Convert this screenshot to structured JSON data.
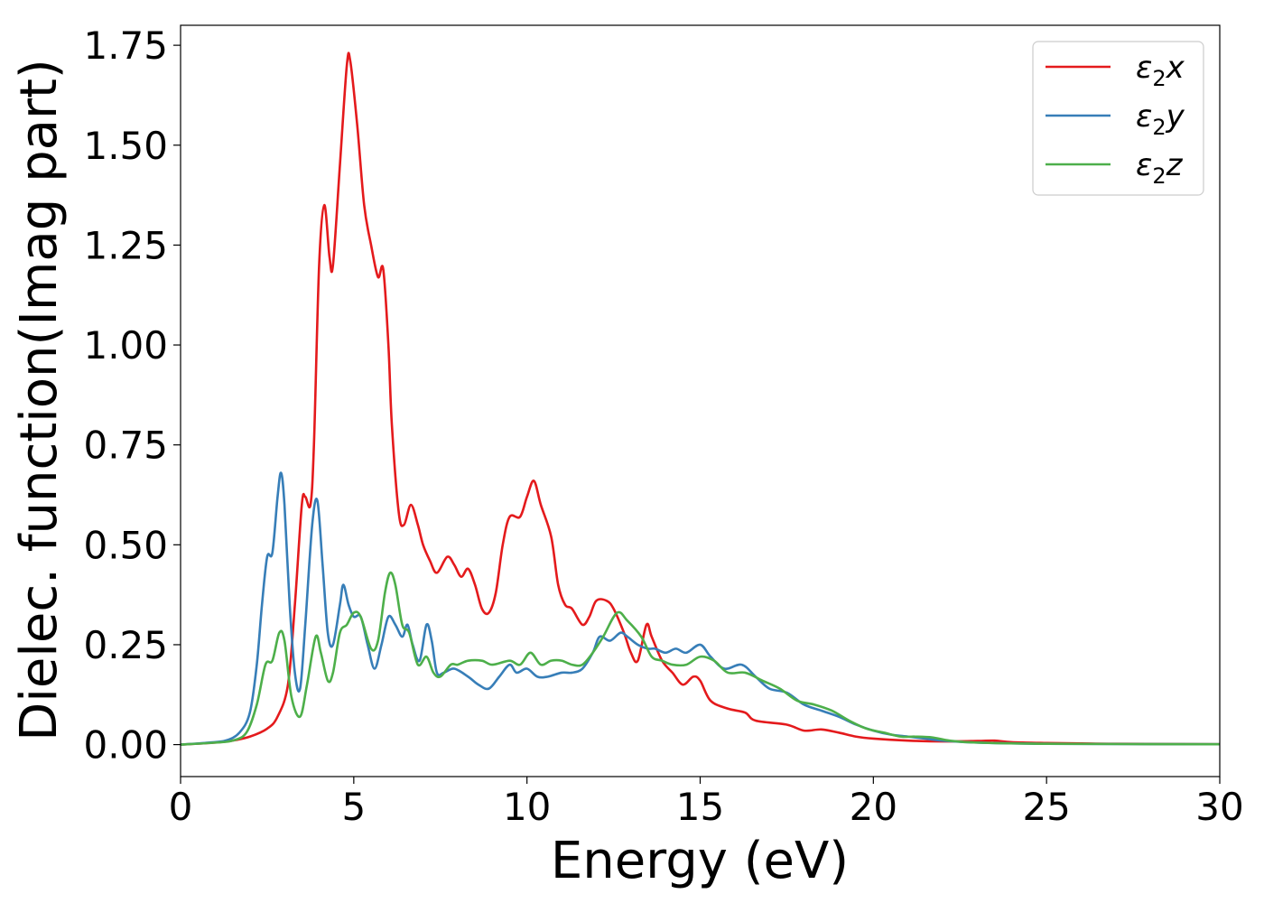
{
  "chart_data": {
    "type": "line",
    "title": "",
    "xlabel": "Energy (eV)",
    "ylabel": "Dielec. function(Imag part)",
    "xlim": [
      0,
      30
    ],
    "ylim": [
      -0.08,
      1.8
    ],
    "xticks": [
      "0",
      "5",
      "10",
      "15",
      "20",
      "25",
      "30"
    ],
    "yticks": [
      "0.00",
      "0.25",
      "0.50",
      "0.75",
      "1.00",
      "1.25",
      "1.50",
      "1.75"
    ],
    "grid": false,
    "legend_position": "top-right",
    "series": [
      {
        "name": "ε2x",
        "legend_base": "ε",
        "legend_sub": "2",
        "legend_var": "x",
        "color": "#e41a1c",
        "points": [
          [
            0,
            0
          ],
          [
            1,
            0.005
          ],
          [
            1.5,
            0.01
          ],
          [
            2,
            0.02
          ],
          [
            2.5,
            0.04
          ],
          [
            2.8,
            0.07
          ],
          [
            3.1,
            0.15
          ],
          [
            3.3,
            0.35
          ],
          [
            3.5,
            0.6
          ],
          [
            3.6,
            0.62
          ],
          [
            3.75,
            0.6
          ],
          [
            3.85,
            0.75
          ],
          [
            4.0,
            1.2
          ],
          [
            4.15,
            1.35
          ],
          [
            4.3,
            1.22
          ],
          [
            4.4,
            1.2
          ],
          [
            4.6,
            1.45
          ],
          [
            4.8,
            1.7
          ],
          [
            4.9,
            1.71
          ],
          [
            5.1,
            1.55
          ],
          [
            5.3,
            1.35
          ],
          [
            5.5,
            1.25
          ],
          [
            5.7,
            1.17
          ],
          [
            5.85,
            1.19
          ],
          [
            6.0,
            1.0
          ],
          [
            6.1,
            0.8
          ],
          [
            6.3,
            0.58
          ],
          [
            6.45,
            0.55
          ],
          [
            6.65,
            0.6
          ],
          [
            6.85,
            0.55
          ],
          [
            7.0,
            0.5
          ],
          [
            7.2,
            0.46
          ],
          [
            7.4,
            0.43
          ],
          [
            7.7,
            0.47
          ],
          [
            7.9,
            0.45
          ],
          [
            8.1,
            0.42
          ],
          [
            8.3,
            0.44
          ],
          [
            8.5,
            0.4
          ],
          [
            8.7,
            0.34
          ],
          [
            8.9,
            0.33
          ],
          [
            9.1,
            0.38
          ],
          [
            9.3,
            0.5
          ],
          [
            9.5,
            0.57
          ],
          [
            9.8,
            0.57
          ],
          [
            10.0,
            0.62
          ],
          [
            10.2,
            0.66
          ],
          [
            10.4,
            0.6
          ],
          [
            10.7,
            0.52
          ],
          [
            10.9,
            0.4
          ],
          [
            11.1,
            0.35
          ],
          [
            11.3,
            0.34
          ],
          [
            11.6,
            0.3
          ],
          [
            11.8,
            0.32
          ],
          [
            12.0,
            0.36
          ],
          [
            12.3,
            0.36
          ],
          [
            12.5,
            0.34
          ],
          [
            12.8,
            0.28
          ],
          [
            13.0,
            0.23
          ],
          [
            13.2,
            0.21
          ],
          [
            13.45,
            0.3
          ],
          [
            13.6,
            0.27
          ],
          [
            13.9,
            0.21
          ],
          [
            14.2,
            0.18
          ],
          [
            14.5,
            0.15
          ],
          [
            14.8,
            0.17
          ],
          [
            15.0,
            0.16
          ],
          [
            15.3,
            0.11
          ],
          [
            15.8,
            0.09
          ],
          [
            16.3,
            0.08
          ],
          [
            16.6,
            0.06
          ],
          [
            17.5,
            0.05
          ],
          [
            18.0,
            0.035
          ],
          [
            18.5,
            0.038
          ],
          [
            19.0,
            0.03
          ],
          [
            19.5,
            0.02
          ],
          [
            20.0,
            0.015
          ],
          [
            21.0,
            0.01
          ],
          [
            22.0,
            0.008
          ],
          [
            23.0,
            0.009
          ],
          [
            23.5,
            0.01
          ],
          [
            24.0,
            0.006
          ],
          [
            25.0,
            0.004
          ],
          [
            26.0,
            0.003
          ],
          [
            27.0,
            0.002
          ],
          [
            30.0,
            0.001
          ]
        ]
      },
      {
        "name": "ε2y",
        "legend_base": "ε",
        "legend_sub": "2",
        "legend_var": "y",
        "color": "#377eb8",
        "points": [
          [
            0,
            0
          ],
          [
            0.8,
            0.005
          ],
          [
            1.3,
            0.01
          ],
          [
            1.7,
            0.03
          ],
          [
            2.0,
            0.08
          ],
          [
            2.2,
            0.2
          ],
          [
            2.35,
            0.35
          ],
          [
            2.5,
            0.47
          ],
          [
            2.65,
            0.48
          ],
          [
            2.8,
            0.62
          ],
          [
            2.9,
            0.68
          ],
          [
            3.0,
            0.6
          ],
          [
            3.15,
            0.35
          ],
          [
            3.3,
            0.18
          ],
          [
            3.45,
            0.14
          ],
          [
            3.6,
            0.3
          ],
          [
            3.8,
            0.55
          ],
          [
            3.95,
            0.61
          ],
          [
            4.1,
            0.45
          ],
          [
            4.25,
            0.28
          ],
          [
            4.4,
            0.25
          ],
          [
            4.6,
            0.35
          ],
          [
            4.7,
            0.4
          ],
          [
            4.85,
            0.35
          ],
          [
            5.0,
            0.32
          ],
          [
            5.2,
            0.32
          ],
          [
            5.4,
            0.25
          ],
          [
            5.6,
            0.19
          ],
          [
            5.8,
            0.25
          ],
          [
            6.0,
            0.32
          ],
          [
            6.2,
            0.3
          ],
          [
            6.4,
            0.27
          ],
          [
            6.55,
            0.3
          ],
          [
            6.7,
            0.25
          ],
          [
            6.9,
            0.21
          ],
          [
            7.1,
            0.3
          ],
          [
            7.25,
            0.26
          ],
          [
            7.4,
            0.18
          ],
          [
            7.6,
            0.18
          ],
          [
            7.9,
            0.19
          ],
          [
            8.3,
            0.17
          ],
          [
            8.6,
            0.15
          ],
          [
            8.9,
            0.14
          ],
          [
            9.2,
            0.17
          ],
          [
            9.5,
            0.2
          ],
          [
            9.7,
            0.18
          ],
          [
            10.0,
            0.19
          ],
          [
            10.3,
            0.17
          ],
          [
            10.6,
            0.17
          ],
          [
            11.0,
            0.18
          ],
          [
            11.3,
            0.18
          ],
          [
            11.6,
            0.19
          ],
          [
            11.9,
            0.23
          ],
          [
            12.1,
            0.27
          ],
          [
            12.4,
            0.26
          ],
          [
            12.7,
            0.28
          ],
          [
            12.9,
            0.27
          ],
          [
            13.2,
            0.25
          ],
          [
            13.5,
            0.24
          ],
          [
            13.7,
            0.24
          ],
          [
            14.0,
            0.23
          ],
          [
            14.3,
            0.24
          ],
          [
            14.6,
            0.23
          ],
          [
            15.0,
            0.25
          ],
          [
            15.3,
            0.22
          ],
          [
            15.7,
            0.19
          ],
          [
            16.2,
            0.2
          ],
          [
            16.6,
            0.17
          ],
          [
            17.0,
            0.14
          ],
          [
            17.5,
            0.13
          ],
          [
            18.0,
            0.1
          ],
          [
            18.5,
            0.085
          ],
          [
            19.0,
            0.07
          ],
          [
            19.5,
            0.05
          ],
          [
            20.0,
            0.035
          ],
          [
            20.5,
            0.025
          ],
          [
            21.0,
            0.02
          ],
          [
            21.5,
            0.015
          ],
          [
            22.0,
            0.01
          ],
          [
            23.0,
            0.005
          ],
          [
            25.0,
            0.002
          ],
          [
            30.0,
            0.001
          ]
        ]
      },
      {
        "name": "ε2z",
        "legend_base": "ε",
        "legend_sub": "2",
        "legend_var": "z",
        "color": "#4daf4a",
        "points": [
          [
            0,
            0
          ],
          [
            1.0,
            0.005
          ],
          [
            1.5,
            0.01
          ],
          [
            1.9,
            0.03
          ],
          [
            2.2,
            0.1
          ],
          [
            2.45,
            0.2
          ],
          [
            2.65,
            0.21
          ],
          [
            2.85,
            0.28
          ],
          [
            3.0,
            0.26
          ],
          [
            3.2,
            0.12
          ],
          [
            3.45,
            0.07
          ],
          [
            3.65,
            0.15
          ],
          [
            3.9,
            0.27
          ],
          [
            4.05,
            0.23
          ],
          [
            4.25,
            0.16
          ],
          [
            4.4,
            0.18
          ],
          [
            4.6,
            0.28
          ],
          [
            4.8,
            0.3
          ],
          [
            5.0,
            0.33
          ],
          [
            5.2,
            0.32
          ],
          [
            5.5,
            0.24
          ],
          [
            5.7,
            0.26
          ],
          [
            5.9,
            0.38
          ],
          [
            6.05,
            0.43
          ],
          [
            6.2,
            0.4
          ],
          [
            6.4,
            0.3
          ],
          [
            6.6,
            0.28
          ],
          [
            6.85,
            0.2
          ],
          [
            7.1,
            0.22
          ],
          [
            7.3,
            0.18
          ],
          [
            7.5,
            0.17
          ],
          [
            7.8,
            0.2
          ],
          [
            8.0,
            0.2
          ],
          [
            8.3,
            0.21
          ],
          [
            8.7,
            0.21
          ],
          [
            9.0,
            0.2
          ],
          [
            9.5,
            0.21
          ],
          [
            9.8,
            0.2
          ],
          [
            10.1,
            0.23
          ],
          [
            10.4,
            0.2
          ],
          [
            10.7,
            0.21
          ],
          [
            11.0,
            0.21
          ],
          [
            11.3,
            0.2
          ],
          [
            11.6,
            0.2
          ],
          [
            11.9,
            0.23
          ],
          [
            12.2,
            0.27
          ],
          [
            12.6,
            0.33
          ],
          [
            12.9,
            0.31
          ],
          [
            13.3,
            0.27
          ],
          [
            13.6,
            0.22
          ],
          [
            13.9,
            0.21
          ],
          [
            14.2,
            0.2
          ],
          [
            14.6,
            0.2
          ],
          [
            15.0,
            0.22
          ],
          [
            15.4,
            0.21
          ],
          [
            15.8,
            0.18
          ],
          [
            16.3,
            0.18
          ],
          [
            16.8,
            0.16
          ],
          [
            17.3,
            0.14
          ],
          [
            17.8,
            0.11
          ],
          [
            18.3,
            0.1
          ],
          [
            18.8,
            0.085
          ],
          [
            19.3,
            0.06
          ],
          [
            19.8,
            0.04
          ],
          [
            20.3,
            0.03
          ],
          [
            20.8,
            0.02
          ],
          [
            21.2,
            0.02
          ],
          [
            21.7,
            0.018
          ],
          [
            22.2,
            0.01
          ],
          [
            23.0,
            0.005
          ],
          [
            25.0,
            0.002
          ],
          [
            30.0,
            0.001
          ]
        ]
      }
    ]
  }
}
